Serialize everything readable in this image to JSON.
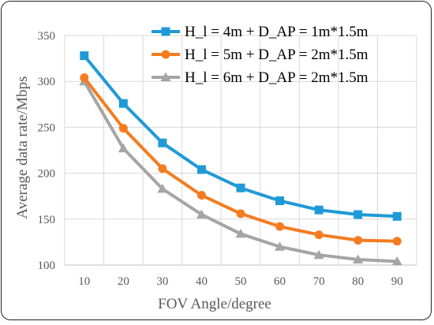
{
  "chart_data": {
    "type": "line",
    "title": "",
    "xlabel": "FOV Angle/degree",
    "ylabel": "Average data rate/Mbps",
    "x": [
      10,
      20,
      30,
      40,
      50,
      60,
      70,
      80,
      90
    ],
    "xticks": [
      "10",
      "20",
      "30",
      "40",
      "50",
      "60",
      "70",
      "80",
      "90"
    ],
    "ylim": [
      100,
      350
    ],
    "yticks": [
      100,
      150,
      200,
      250,
      300,
      350
    ],
    "grid": true,
    "legend_position": "top-right",
    "series": [
      {
        "name": "H_l = 4m + D_AP = 1m*1.5m",
        "color": "#1f9ad6",
        "marker": "square",
        "values": [
          328,
          276,
          233,
          204,
          184,
          170,
          160,
          155,
          153
        ]
      },
      {
        "name": "H_l = 5m + D_AP = 2m*1.5m",
        "color": "#f47c20",
        "marker": "circle",
        "values": [
          304,
          249,
          205,
          176,
          156,
          142,
          133,
          127,
          126
        ]
      },
      {
        "name": "H_l = 6m + D_AP = 2m*1.5m",
        "color": "#a5a5a5",
        "marker": "triangle",
        "values": [
          300,
          227,
          183,
          155,
          134,
          120,
          111,
          106,
          104
        ]
      }
    ]
  }
}
